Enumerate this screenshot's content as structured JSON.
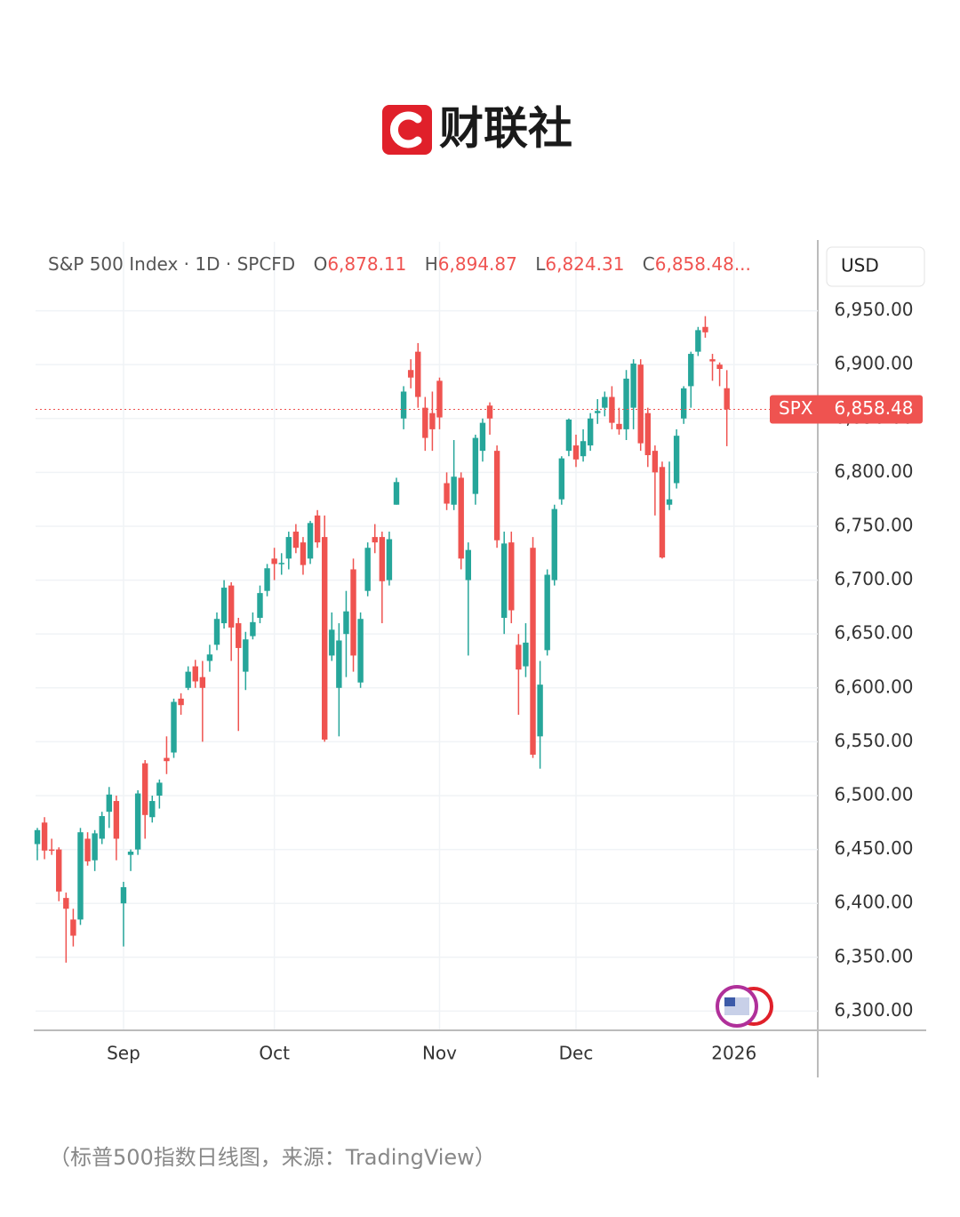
{
  "brand": "财联社",
  "caption": "（标普500指数日线图，来源：TradingView）",
  "chart_data": {
    "type": "candlestick",
    "title": "S&P 500 Index · 1D · SPCFD",
    "ohlc_header": [
      {
        "label": "O",
        "value": "6,878.11"
      },
      {
        "label": "H",
        "value": "6,894.87"
      },
      {
        "label": "L",
        "value": "6,824.31"
      },
      {
        "label": "C",
        "value": "6,858.48..."
      }
    ],
    "currency": "USD",
    "up_color": "#26a69a",
    "down_color": "#ef5350",
    "grid": true,
    "categories": [
      null,
      null,
      null,
      null,
      null,
      null,
      null,
      null,
      null,
      null,
      null,
      null,
      "Sep",
      null,
      null,
      null,
      null,
      null,
      null,
      null,
      null,
      null,
      null,
      null,
      null,
      null,
      null,
      null,
      null,
      null,
      null,
      null,
      null,
      "Oct",
      null,
      null,
      null,
      null,
      null,
      null,
      null,
      null,
      null,
      null,
      null,
      null,
      null,
      null,
      null,
      null,
      null,
      null,
      null,
      null,
      null,
      null,
      "Nov",
      null,
      null,
      null,
      null,
      null,
      null,
      null,
      null,
      null,
      null,
      null,
      null,
      null,
      null,
      null,
      null,
      null,
      null,
      "Dec",
      null,
      null,
      null,
      null,
      null,
      null,
      null,
      null,
      null,
      null,
      null,
      null,
      null,
      null,
      null,
      null,
      null,
      null,
      null,
      null,
      null,
      "2026"
    ],
    "open": [
      6455,
      6475,
      6450,
      6450,
      6405,
      6385,
      6385,
      6460,
      6440,
      6460,
      6485,
      6495,
      6400,
      6445,
      6450,
      6530,
      6480,
      6500,
      6535,
      6540,
      6590,
      6600,
      6620,
      6610,
      6625,
      6640,
      6660,
      6695,
      6660,
      6615,
      6648,
      6665,
      6690,
      6720,
      6715,
      6720,
      6745,
      6735,
      6720,
      6760,
      6740,
      6630,
      6600,
      6650,
      6710,
      6605,
      6690,
      6740,
      6740,
      6700,
      6770,
      6850,
      6895,
      6912,
      6860,
      6855,
      6885,
      6790,
      6770,
      6795,
      6700,
      6780,
      6820,
      6862,
      6820,
      6665,
      6735,
      6640,
      6620,
      6730,
      6555,
      6635,
      6700,
      6775,
      6820,
      6825,
      6815,
      6825,
      6855,
      6860,
      6870,
      6845,
      6840,
      6860,
      6900,
      6855,
      6820,
      6805,
      6770,
      6790,
      6850,
      6880,
      6912,
      6935,
      6905,
      6900,
      6878.11,
      null
    ],
    "high": [
      6470,
      6480,
      6460,
      6452,
      6410,
      6395,
      6470,
      6466,
      6468,
      6485,
      6508,
      6500,
      6420,
      6450,
      6505,
      6533,
      6500,
      6515,
      6555,
      6590,
      6595,
      6620,
      6626,
      6625,
      6640,
      6670,
      6700,
      6698,
      6665,
      6652,
      6670,
      6695,
      6715,
      6730,
      6725,
      6745,
      6752,
      6740,
      6755,
      6765,
      6760,
      6670,
      6660,
      6690,
      6720,
      6670,
      6735,
      6752,
      6745,
      6745,
      6795,
      6880,
      6905,
      6920,
      6870,
      6875,
      6888,
      6800,
      6830,
      6800,
      6735,
      6835,
      6850,
      6865,
      6825,
      6745,
      6745,
      6650,
      6660,
      6740,
      6625,
      6710,
      6770,
      6815,
      6850,
      6835,
      6840,
      6855,
      6868,
      6875,
      6880,
      6860,
      6895,
      6905,
      6905,
      6860,
      6825,
      6810,
      6810,
      6840,
      6880,
      6912,
      6935,
      6945,
      6910,
      6902,
      6894.87,
      null
    ],
    "low": [
      6440,
      6441,
      6445,
      6402,
      6345,
      6360,
      6380,
      6435,
      6430,
      6455,
      6470,
      6440,
      6360,
      6430,
      6445,
      6460,
      6475,
      6488,
      6520,
      6535,
      6575,
      6598,
      6600,
      6550,
      6615,
      6635,
      6655,
      6625,
      6560,
      6598,
      6645,
      6660,
      6685,
      6700,
      6705,
      6710,
      6725,
      6705,
      6715,
      6730,
      6550,
      6625,
      6555,
      6610,
      6615,
      6600,
      6685,
      6725,
      6660,
      6695,
      6770,
      6840,
      6878,
      6860,
      6820,
      6820,
      6840,
      6765,
      6765,
      6710,
      6630,
      6770,
      6810,
      6835,
      6730,
      6650,
      6660,
      6575,
      6610,
      6535,
      6525,
      6630,
      6695,
      6770,
      6815,
      6805,
      6810,
      6820,
      6845,
      6852,
      6840,
      6835,
      6830,
      6840,
      6820,
      6805,
      6760,
      6720,
      6765,
      6785,
      6845,
      6860,
      6908,
      6925,
      6885,
      6880,
      6824.31,
      null
    ],
    "close": [
      6468,
      6449,
      6449,
      6411,
      6395,
      6370,
      6466,
      6439,
      6465,
      6481,
      6501,
      6460,
      6415,
      6448,
      6502,
      6482,
      6495,
      6512,
      6532,
      6587,
      6584,
      6615,
      6606,
      6600,
      6631,
      6664,
      6693,
      6656,
      6637,
      6645,
      6661,
      6688,
      6711,
      6715,
      6716,
      6740,
      6730,
      6714,
      6753,
      6735,
      6552,
      6654,
      6644,
      6671,
      6630,
      6664,
      6730,
      6735,
      6699,
      6738,
      6791,
      6875,
      6888,
      6870,
      6832,
      6840,
      6851,
      6771,
      6796,
      6720,
      6728,
      6832,
      6846,
      6850,
      6737,
      6734,
      6672,
      6617,
      6642,
      6538,
      6603,
      6705,
      6766,
      6813,
      6849,
      6812,
      6829,
      6850,
      6857,
      6870,
      6846,
      6840,
      6887,
      6901,
      6827,
      6816,
      6800,
      6721,
      6775,
      6834,
      6878,
      6910,
      6932,
      6930,
      6903,
      6896,
      6858.48,
      null
    ],
    "ylim": [
      6283,
      7014
    ],
    "yticks": [
      {
        "value": 6950,
        "label": "6,950.00"
      },
      {
        "value": 6900,
        "label": "6,900.00"
      },
      {
        "value": 6850,
        "label": "6,850.00"
      },
      {
        "value": 6800,
        "label": "6,800.00"
      },
      {
        "value": 6750,
        "label": "6,750.00"
      },
      {
        "value": 6700,
        "label": "6,700.00"
      },
      {
        "value": 6650,
        "label": "6,650.00"
      },
      {
        "value": 6600,
        "label": "6,600.00"
      },
      {
        "value": 6550,
        "label": "6,550.00"
      },
      {
        "value": 6500,
        "label": "6,500.00"
      },
      {
        "value": 6450,
        "label": "6,450.00"
      },
      {
        "value": 6400,
        "label": "6,400.00"
      },
      {
        "value": 6350,
        "label": "6,350.00"
      },
      {
        "value": 6300,
        "label": "6,300.00"
      }
    ],
    "price_line": {
      "label": "SPX",
      "value": 6858.48,
      "value_label": "6,858.48"
    }
  }
}
